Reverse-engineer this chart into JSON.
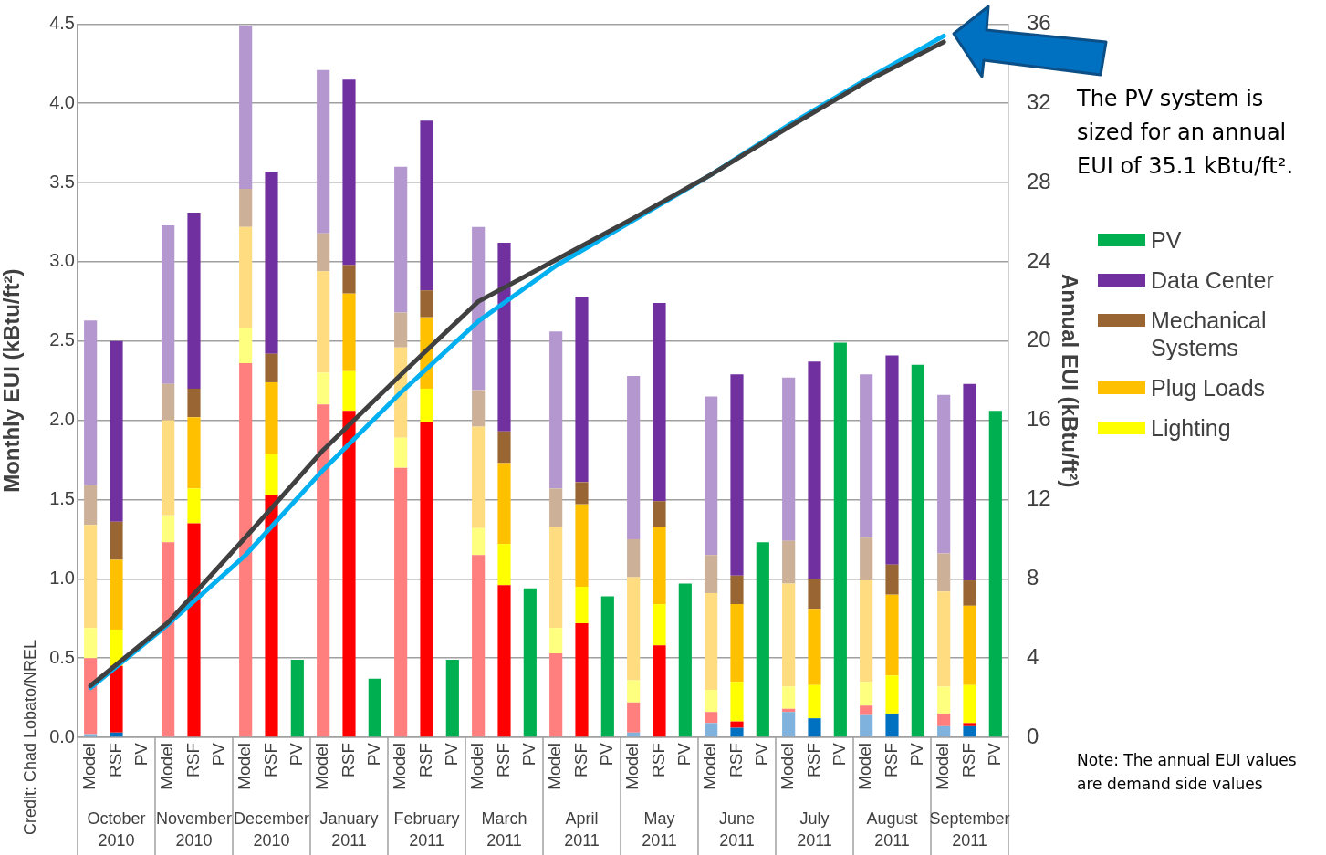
{
  "chart_data": {
    "type": "bar",
    "stacked": true,
    "grid": "y",
    "legend": "right",
    "marker": "none",
    "ylabel": "Monthly EUI (kBtu/ft²)",
    "y2label": "Annual EUI (kBtu/ft²)",
    "categories": [
      "Model",
      "RSF",
      "PV",
      "Model",
      "RSF",
      "PV",
      "Model",
      "RSF",
      "PV",
      "Model",
      "RSF",
      "PV",
      "Model",
      "RSF",
      "PV",
      "Model",
      "RSF",
      "PV",
      "Model",
      "RSF",
      "PV",
      "Model",
      "RSF",
      "PV",
      "Model",
      "RSF",
      "PV",
      "Model",
      "RSF",
      "PV",
      "Model",
      "RSF",
      "PV",
      "Model",
      "RSF",
      "PV"
    ],
    "ylim": [
      0,
      4.5
    ],
    "yticks": [
      {
        "value": 0,
        "label": "0.0"
      },
      {
        "value": 0.5,
        "label": "0.5"
      },
      {
        "value": 1,
        "label": "1.0"
      },
      {
        "value": 1.5,
        "label": "1.5"
      },
      {
        "value": 2,
        "label": "2.0"
      },
      {
        "value": 2.5,
        "label": "2.5"
      },
      {
        "value": 3,
        "label": "3.0"
      },
      {
        "value": 3.5,
        "label": "3.5"
      },
      {
        "value": 4,
        "label": "4.0"
      },
      {
        "value": 4.5,
        "label": "4.5"
      }
    ],
    "y2lim": [
      0,
      36
    ],
    "y2ticks": [
      0,
      4,
      8,
      12,
      16,
      20,
      24,
      28,
      32,
      36
    ],
    "series": [
      {
        "colors": [
          "#7fb3de",
          "#0070c0",
          "#00b050",
          "#7fb3de",
          "#0070c0",
          "#00b050",
          "#7fb3de",
          "#0070c0",
          "#00b050",
          "#7fb3de",
          "#0070c0",
          "#00b050",
          "#7fb3de",
          "#0070c0",
          "#00b050",
          "#7fb3de",
          "#0070c0",
          "#00b050",
          "#7fb3de",
          "#0070c0",
          "#00b050",
          "#7fb3de",
          "#0070c0",
          "#00b050",
          "#7fb3de",
          "#0070c0",
          "#00b050",
          "#7fb3de",
          "#0070c0",
          "#00b050",
          "#7fb3de",
          "#0070c0",
          "#00b050",
          "#7fb3de",
          "#0070c0",
          "#00b050"
        ],
        "values": [
          0.02,
          0.03,
          null,
          0,
          0,
          null,
          0,
          0,
          null,
          0,
          0,
          null,
          0,
          0,
          null,
          0,
          0,
          null,
          0,
          0,
          null,
          0.03,
          0,
          null,
          0.09,
          0.06,
          null,
          0.16,
          0.12,
          null,
          0.14,
          0.15,
          null,
          0.07,
          0.07,
          null
        ]
      },
      {
        "colors": [
          "#ff7f7f",
          "#ff0000",
          "#00b050",
          "#ff7f7f",
          "#ff0000",
          "#00b050",
          "#ff7f7f",
          "#ff0000",
          "#00b050",
          "#ff7f7f",
          "#ff0000",
          "#00b050",
          "#ff7f7f",
          "#ff0000",
          "#00b050",
          "#ff7f7f",
          "#ff0000",
          "#00b050",
          "#ff7f7f",
          "#ff0000",
          "#00b050",
          "#ff7f7f",
          "#ff0000",
          "#00b050",
          "#ff7f7f",
          "#ff0000",
          "#00b050",
          "#ff7f7f",
          "#ff0000",
          "#00b050",
          "#ff7f7f",
          "#ff0000",
          "#00b050",
          "#ff7f7f",
          "#ff0000",
          "#00b050"
        ],
        "values": [
          0.48,
          0.42,
          null,
          1.23,
          1.35,
          null,
          2.36,
          1.53,
          null,
          2.1,
          2.06,
          null,
          1.7,
          1.99,
          null,
          1.15,
          0.96,
          null,
          0.53,
          0.72,
          null,
          0.19,
          0.58,
          null,
          0.07,
          0.04,
          null,
          0.02,
          0,
          null,
          0.06,
          0,
          null,
          0.08,
          0.02,
          null
        ]
      },
      {
        "name": "Lighting",
        "color": "#ffff00",
        "colors": [
          "#ffff7f",
          "#ffff00",
          "#00b050",
          "#ffff7f",
          "#ffff00",
          "#00b050",
          "#ffff7f",
          "#ffff00",
          "#00b050",
          "#ffff7f",
          "#ffff00",
          "#00b050",
          "#ffff7f",
          "#ffff00",
          "#00b050",
          "#ffff7f",
          "#ffff00",
          "#00b050",
          "#ffff7f",
          "#ffff00",
          "#00b050",
          "#ffff7f",
          "#ffff00",
          "#00b050",
          "#ffff7f",
          "#ffff00",
          "#00b050",
          "#ffff7f",
          "#ffff00",
          "#00b050",
          "#ffff7f",
          "#ffff00",
          "#00b050",
          "#ffff7f",
          "#ffff00",
          "#00b050"
        ],
        "values": [
          0.19,
          0.23,
          null,
          0.17,
          0.22,
          null,
          0.22,
          0.26,
          null,
          0.2,
          0.25,
          null,
          0.19,
          0.21,
          null,
          0.17,
          0.26,
          null,
          0.16,
          0.23,
          null,
          0.14,
          0.26,
          null,
          0.14,
          0.25,
          null,
          0.14,
          0.21,
          null,
          0.15,
          0.24,
          null,
          0.17,
          0.24,
          null
        ]
      },
      {
        "name": "Plug Loads",
        "color": "#ffc000",
        "colors": [
          "#ffdc7f",
          "#ffc000",
          "#00b050",
          "#ffdc7f",
          "#ffc000",
          "#00b050",
          "#ffdc7f",
          "#ffc000",
          "#00b050",
          "#ffdc7f",
          "#ffc000",
          "#00b050",
          "#ffdc7f",
          "#ffc000",
          "#00b050",
          "#ffdc7f",
          "#ffc000",
          "#00b050",
          "#ffdc7f",
          "#ffc000",
          "#00b050",
          "#ffdc7f",
          "#ffc000",
          "#00b050",
          "#ffdc7f",
          "#ffc000",
          "#00b050",
          "#ffdc7f",
          "#ffc000",
          "#00b050",
          "#ffdc7f",
          "#ffc000",
          "#00b050",
          "#ffdc7f",
          "#ffc000",
          "#00b050"
        ],
        "values": [
          0.65,
          0.44,
          null,
          0.6,
          0.45,
          null,
          0.64,
          0.45,
          null,
          0.64,
          0.49,
          null,
          0.57,
          0.45,
          null,
          0.64,
          0.51,
          null,
          0.64,
          0.52,
          null,
          0.65,
          0.49,
          null,
          0.61,
          0.49,
          null,
          0.65,
          0.48,
          null,
          0.64,
          0.51,
          null,
          0.6,
          0.5,
          null
        ]
      },
      {
        "name": "Mechanical Systems",
        "color": "#996633",
        "colors": [
          "#ccb097",
          "#996633",
          "#00b050",
          "#ccb097",
          "#996633",
          "#00b050",
          "#ccb097",
          "#996633",
          "#00b050",
          "#ccb097",
          "#996633",
          "#00b050",
          "#ccb097",
          "#996633",
          "#00b050",
          "#ccb097",
          "#996633",
          "#00b050",
          "#ccb097",
          "#996633",
          "#00b050",
          "#ccb097",
          "#996633",
          "#00b050",
          "#ccb097",
          "#996633",
          "#00b050",
          "#ccb097",
          "#996633",
          "#00b050",
          "#ccb097",
          "#996633",
          "#00b050",
          "#ccb097",
          "#996633",
          "#00b050"
        ],
        "values": [
          0.25,
          0.24,
          null,
          0.23,
          0.18,
          null,
          0.24,
          0.18,
          null,
          0.24,
          0.18,
          null,
          0.22,
          0.17,
          null,
          0.23,
          0.2,
          null,
          0.24,
          0.14,
          null,
          0.24,
          0.16,
          null,
          0.24,
          0.18,
          null,
          0.27,
          0.19,
          null,
          0.27,
          0.19,
          null,
          0.24,
          0.16,
          null
        ]
      },
      {
        "name": "Data Center",
        "color": "#7030a0",
        "colors": [
          "#b597d0",
          "#7030a0",
          "#00b050",
          "#b597d0",
          "#7030a0",
          "#00b050",
          "#b597d0",
          "#7030a0",
          "#00b050",
          "#b597d0",
          "#7030a0",
          "#00b050",
          "#b597d0",
          "#7030a0",
          "#00b050",
          "#b597d0",
          "#7030a0",
          "#00b050",
          "#b597d0",
          "#7030a0",
          "#00b050",
          "#b597d0",
          "#7030a0",
          "#00b050",
          "#b597d0",
          "#7030a0",
          "#00b050",
          "#b597d0",
          "#7030a0",
          "#00b050",
          "#b597d0",
          "#7030a0",
          "#00b050",
          "#b597d0",
          "#7030a0",
          "#00b050"
        ],
        "values": [
          1.04,
          1.14,
          null,
          1.0,
          1.11,
          null,
          1.03,
          1.15,
          null,
          1.03,
          1.17,
          null,
          0.92,
          1.07,
          null,
          1.03,
          1.19,
          null,
          0.99,
          1.17,
          null,
          1.03,
          1.25,
          null,
          1.0,
          1.27,
          null,
          1.03,
          1.37,
          null,
          1.03,
          1.32,
          null,
          1.0,
          1.24,
          null
        ]
      },
      {
        "name": "PV",
        "color": "#00b050",
        "values": [
          null,
          null,
          0,
          null,
          null,
          0,
          null,
          null,
          0.49,
          null,
          null,
          0.37,
          null,
          null,
          0.49,
          null,
          null,
          0.94,
          null,
          null,
          0.89,
          null,
          null,
          0.97,
          null,
          null,
          1.23,
          null,
          null,
          2.49,
          null,
          null,
          2.35,
          null,
          null,
          2.06
        ]
      },
      {
        "type": "line",
        "axis": "y2",
        "color": "#404040",
        "values": [
          2.6,
          null,
          null,
          5.8,
          null,
          null,
          10.1,
          null,
          null,
          14.5,
          null,
          null,
          18.3,
          null,
          null,
          22.0,
          null,
          null,
          24.1,
          null,
          null,
          26.2,
          null,
          null,
          28.4,
          null,
          null,
          30.8,
          null,
          null,
          33.1,
          null,
          null,
          35.1,
          null,
          null
        ]
      },
      {
        "type": "line",
        "axis": "y2",
        "color": "#00b0f0",
        "values": [
          2.5,
          null,
          null,
          5.7,
          null,
          null,
          9.2,
          null,
          null,
          13.5,
          null,
          null,
          17.4,
          null,
          null,
          21.0,
          null,
          null,
          23.8,
          null,
          null,
          26.1,
          null,
          null,
          28.4,
          null,
          null,
          30.9,
          null,
          null,
          33.2,
          null,
          null,
          35.4,
          null,
          null
        ]
      }
    ],
    "annotations": [
      "October 2010",
      "November 2010",
      "December 2010",
      "January 2011",
      "February 2011",
      "March 2011",
      "April 2011",
      "May 2011",
      "June 2011",
      "July 2011",
      "August 2011",
      "September 2011",
      "The PV system is sized for an annual EUI of 35.1 kBtu/ft².",
      "Note: The annual EUI values are demand side values",
      "Credit: Chad Lobato/NREL"
    ]
  }
}
